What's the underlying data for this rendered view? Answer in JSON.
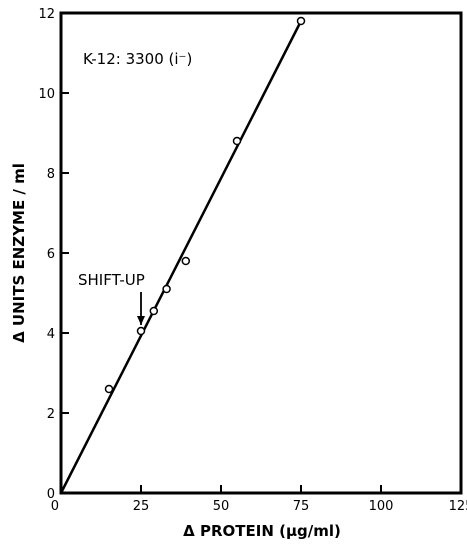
{
  "chart_data": {
    "type": "line",
    "title": "",
    "xlabel": "Δ PROTEIN (µg/ml)",
    "ylabel": "Δ UNITS ENZYME / ml",
    "xlim": [
      0,
      125
    ],
    "ylim": [
      0,
      12
    ],
    "x_ticks": [
      0,
      25,
      50,
      75,
      100,
      125
    ],
    "y_ticks": [
      0,
      2,
      4,
      6,
      8,
      10,
      12
    ],
    "grid": false,
    "series": [
      {
        "x": [
          15,
          25,
          29,
          33,
          39,
          55,
          75
        ],
        "y": [
          2.6,
          4.05,
          4.55,
          5.1,
          5.8,
          8.8,
          11.8
        ],
        "marker": "open-circle"
      }
    ],
    "fit_line": {
      "x": [
        0,
        75
      ],
      "y": [
        0,
        11.8
      ]
    },
    "annotations": [
      {
        "text": "K-12: 3300 (i⁻)"
      },
      {
        "text": "SHIFT-UP",
        "arrow_to": {
          "x": 25,
          "y": 4.05
        }
      }
    ]
  }
}
